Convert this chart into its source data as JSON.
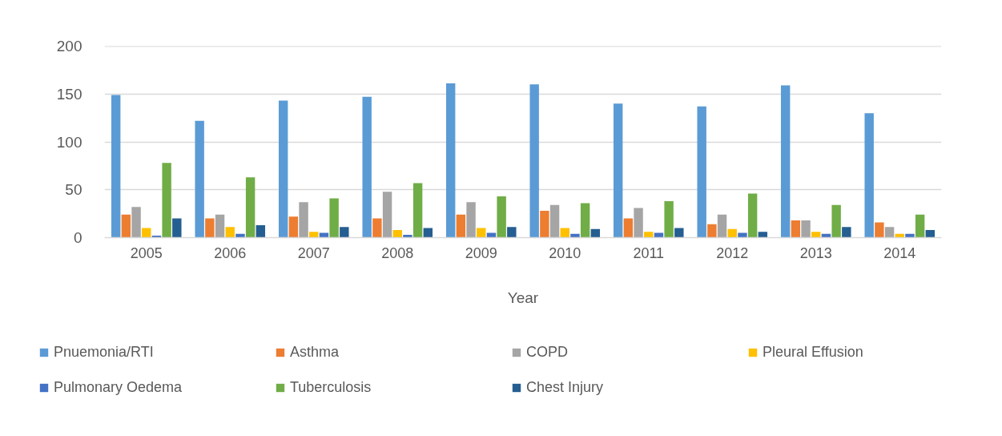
{
  "chart_data": {
    "type": "bar",
    "xlabel": "Year",
    "categories": [
      "2005",
      "2006",
      "2007",
      "2008",
      "2009",
      "2010",
      "2011",
      "2012",
      "2013",
      "2014"
    ],
    "series": [
      {
        "name": "Pnuemonia/RTI",
        "color": "#5b9bd5",
        "values": [
          149,
          122,
          143,
          147,
          161,
          160,
          140,
          137,
          159,
          130
        ]
      },
      {
        "name": "Asthma",
        "color": "#ed7d31",
        "values": [
          24,
          20,
          22,
          20,
          24,
          28,
          20,
          14,
          18,
          16
        ]
      },
      {
        "name": "COPD",
        "color": "#a5a5a5",
        "values": [
          32,
          24,
          37,
          48,
          37,
          34,
          31,
          24,
          18,
          11
        ]
      },
      {
        "name": "Pleural Effusion",
        "color": "#ffc000",
        "values": [
          10,
          11,
          6,
          8,
          10,
          10,
          6,
          9,
          6,
          4
        ]
      },
      {
        "name": "Pulmonary Oedema",
        "color": "#4472c4",
        "values": [
          2,
          4,
          5,
          3,
          5,
          4,
          5,
          5,
          4,
          4
        ]
      },
      {
        "name": "Tuberculosis",
        "color": "#70ad47",
        "values": [
          78,
          63,
          41,
          57,
          43,
          36,
          38,
          46,
          34,
          24
        ]
      },
      {
        "name": "Chest Injury",
        "color": "#255e91",
        "values": [
          20,
          13,
          11,
          10,
          11,
          9,
          10,
          6,
          11,
          8
        ]
      }
    ],
    "ylim": [
      0,
      200
    ],
    "yticks": [
      0,
      50,
      100,
      150,
      200
    ],
    "grid": "y",
    "legend": "bottom"
  }
}
